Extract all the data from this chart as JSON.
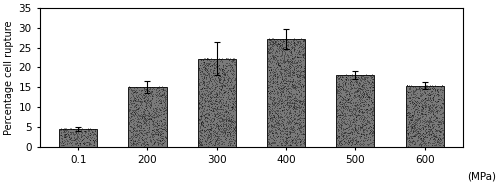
{
  "categories": [
    "0.1",
    "200",
    "300",
    "400",
    "500",
    "600"
  ],
  "values": [
    4.5,
    15.0,
    22.2,
    27.2,
    18.0,
    15.4
  ],
  "errors": [
    0.5,
    1.5,
    4.2,
    2.5,
    1.0,
    0.8
  ],
  "mpa_label": "(MPa)",
  "ylabel": "Percentage cell rupture",
  "ylim": [
    0,
    35
  ],
  "yticks": [
    0,
    5,
    10,
    15,
    20,
    25,
    30,
    35
  ],
  "bar_color": "#7a7a7a",
  "bar_width": 0.55,
  "background_color": "#ffffff",
  "axis_fontsize": 7,
  "tick_fontsize": 7.5
}
